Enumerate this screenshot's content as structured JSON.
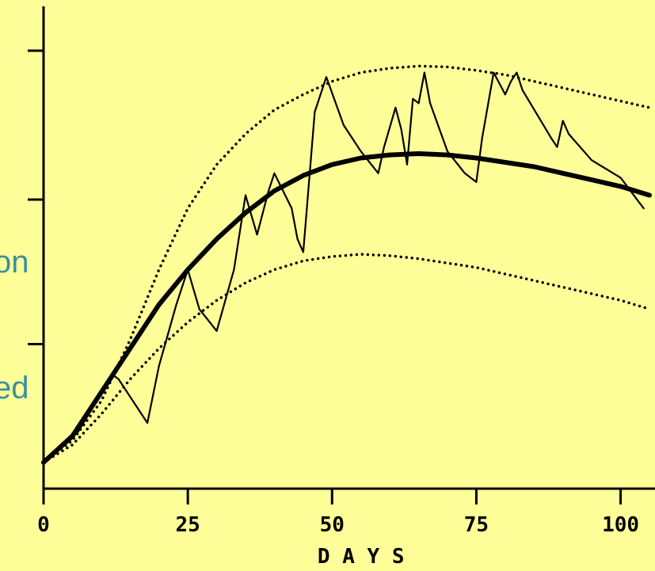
{
  "side_text": [
    "on",
    "ed"
  ],
  "chart_data": {
    "type": "line",
    "title": "",
    "xlabel": "D A Y S",
    "ylabel": "",
    "xlim": [
      0,
      105
    ],
    "xticks": [
      0,
      25,
      50,
      75,
      100
    ],
    "xtick_labels": [
      "0",
      "25",
      "50",
      "75",
      "100"
    ],
    "ylim": [
      0,
      1
    ],
    "yticks": [
      0.33,
      0.66,
      1.0
    ],
    "grid": false,
    "legend": "none",
    "colors": {
      "background": "#ffff99",
      "ink": "#000000",
      "side_text": "#3a8fa0"
    },
    "series": [
      {
        "style": "thick",
        "x": [
          0,
          5,
          10,
          15,
          20,
          25,
          30,
          35,
          40,
          45,
          50,
          55,
          60,
          65,
          70,
          75,
          80,
          85,
          90,
          95,
          100,
          105
        ],
        "y": [
          0.06,
          0.12,
          0.22,
          0.32,
          0.42,
          0.5,
          0.57,
          0.63,
          0.68,
          0.715,
          0.74,
          0.755,
          0.762,
          0.765,
          0.762,
          0.755,
          0.745,
          0.735,
          0.72,
          0.705,
          0.69,
          0.67
        ]
      },
      {
        "style": "dotted",
        "x": [
          0,
          5,
          10,
          15,
          20,
          25,
          30,
          35,
          40,
          45,
          50,
          55,
          60,
          65,
          70,
          75,
          80,
          85,
          90,
          95,
          100,
          105
        ],
        "y": [
          0.06,
          0.11,
          0.2,
          0.34,
          0.5,
          0.64,
          0.74,
          0.81,
          0.865,
          0.9,
          0.93,
          0.95,
          0.96,
          0.965,
          0.963,
          0.955,
          0.945,
          0.93,
          0.915,
          0.9,
          0.885,
          0.87
        ]
      },
      {
        "style": "dotted",
        "x": [
          0,
          5,
          10,
          15,
          20,
          25,
          30,
          35,
          40,
          45,
          50,
          55,
          60,
          65,
          70,
          75,
          80,
          85,
          90,
          95,
          100,
          105
        ],
        "y": [
          0.06,
          0.1,
          0.17,
          0.25,
          0.32,
          0.38,
          0.43,
          0.47,
          0.5,
          0.52,
          0.53,
          0.535,
          0.532,
          0.525,
          0.515,
          0.505,
          0.49,
          0.475,
          0.46,
          0.445,
          0.43,
          0.41
        ]
      },
      {
        "style": "thin",
        "x": [
          0,
          6,
          12,
          13,
          18,
          20,
          23,
          25,
          27,
          30,
          33,
          35,
          37,
          39,
          40,
          43,
          44,
          45,
          47,
          49,
          52,
          55,
          58,
          59,
          61,
          62,
          63,
          64,
          65,
          66,
          67,
          70,
          73,
          75,
          76,
          78,
          80,
          81,
          82,
          83,
          88,
          89,
          90,
          91,
          95,
          100,
          104
        ],
        "y": [
          0.06,
          0.13,
          0.26,
          0.25,
          0.15,
          0.28,
          0.42,
          0.5,
          0.41,
          0.36,
          0.5,
          0.67,
          0.58,
          0.68,
          0.72,
          0.64,
          0.57,
          0.54,
          0.86,
          0.94,
          0.83,
          0.77,
          0.72,
          0.78,
          0.87,
          0.82,
          0.74,
          0.89,
          0.88,
          0.95,
          0.88,
          0.77,
          0.72,
          0.7,
          0.8,
          0.95,
          0.9,
          0.93,
          0.95,
          0.91,
          0.8,
          0.78,
          0.84,
          0.81,
          0.75,
          0.71,
          0.64
        ]
      }
    ]
  }
}
